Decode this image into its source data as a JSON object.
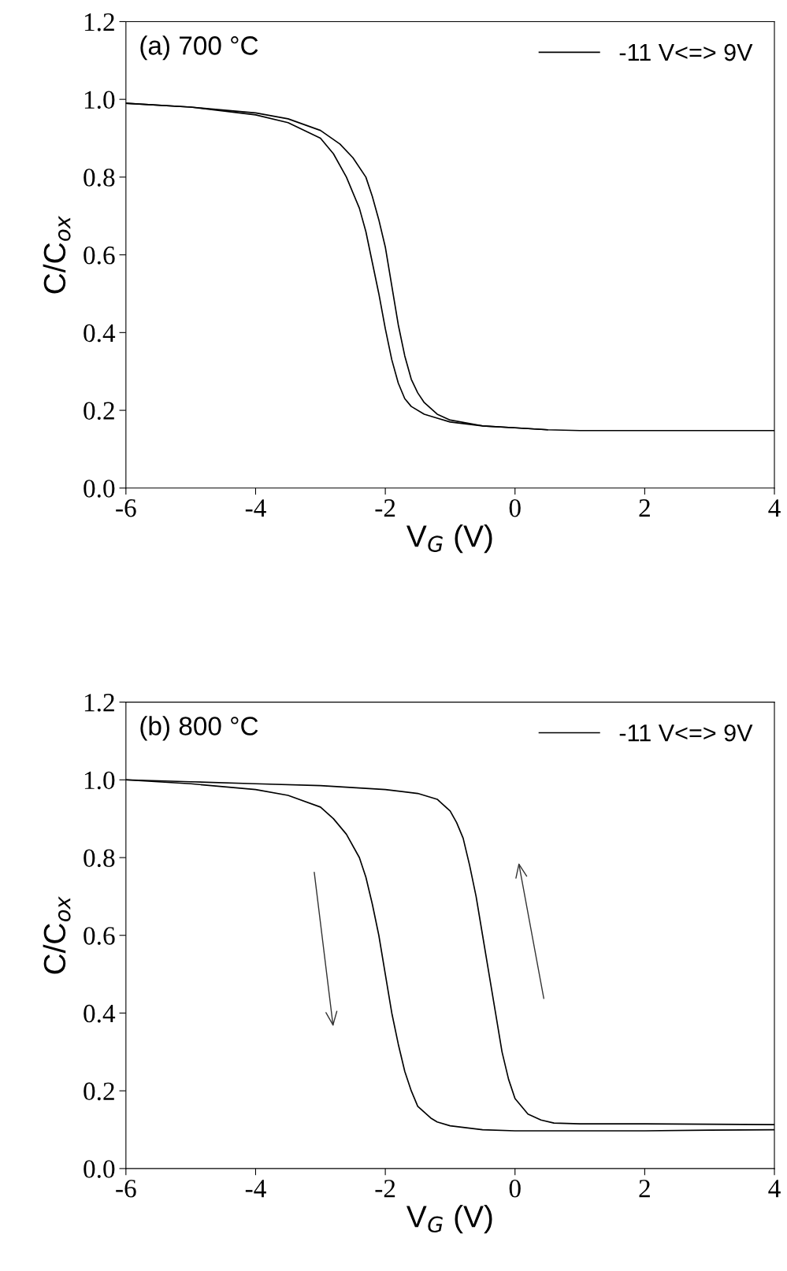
{
  "chart_data": [
    {
      "type": "line",
      "title": "(a) 700 °C",
      "xlabel": "V$_{G}$ (V)",
      "ylabel": "C/C$_{ox}$",
      "legend": "top right",
      "grid": false,
      "marker": "none",
      "line_style": "solid",
      "xlim": [
        -6,
        4
      ],
      "xticks": [
        -6,
        -4,
        -2,
        0,
        2,
        4
      ],
      "ylim": [
        0,
        1.2
      ],
      "yticks": [
        {
          "value": 0,
          "label": "0.0"
        },
        {
          "value": 0.2,
          "label": "0.2"
        },
        {
          "value": 0.4,
          "label": "0.4"
        },
        {
          "value": 0.6,
          "label": "0.6"
        },
        {
          "value": 0.8,
          "label": "0.8"
        },
        {
          "value": 1.0,
          "label": "1.0"
        },
        {
          "value": 1.2,
          "label": "1.2"
        }
      ],
      "series": [
        {
          "name": "-11 V<=> 9V",
          "color": "#000000",
          "x": [
            -6,
            -5,
            -4,
            -3.5,
            -3,
            -2.7,
            -2.5,
            -2.3,
            -2.2,
            -2.1,
            -2,
            -1.9,
            -1.8,
            -1.7,
            -1.6,
            -1.5,
            -1.4,
            -1.2,
            -1,
            -0.5,
            0,
            0.5,
            1,
            2,
            3,
            4
          ],
          "values": [
            0.99,
            0.98,
            0.965,
            0.95,
            0.92,
            0.885,
            0.85,
            0.8,
            0.75,
            0.69,
            0.62,
            0.52,
            0.42,
            0.34,
            0.28,
            0.245,
            0.22,
            0.19,
            0.175,
            0.16,
            0.155,
            0.15,
            0.148,
            0.148,
            0.148,
            0.148
          ]
        },
        {
          "color": "#000000",
          "x": [
            -6,
            -5,
            -4,
            -3.5,
            -3,
            -2.8,
            -2.6,
            -2.4,
            -2.3,
            -2.2,
            -2.1,
            -2,
            -1.9,
            -1.8,
            -1.7,
            -1.6,
            -1.4,
            -1.2,
            -1,
            -0.5,
            0,
            0.5
          ],
          "values": [
            0.99,
            0.98,
            0.96,
            0.94,
            0.9,
            0.86,
            0.8,
            0.72,
            0.66,
            0.58,
            0.5,
            0.41,
            0.33,
            0.27,
            0.23,
            0.21,
            0.19,
            0.18,
            0.17,
            0.16,
            0.155,
            0.15
          ]
        }
      ]
    },
    {
      "type": "line",
      "title": "(b) 800 °C",
      "xlabel": "V$_{G}$ (V)",
      "ylabel": "C/C$_{ox}$",
      "legend": "top right",
      "grid": false,
      "marker": "none",
      "line_style": "solid",
      "xlim": [
        -6,
        4
      ],
      "xticks": [
        -6,
        -4,
        -2,
        0,
        2,
        4
      ],
      "ylim": [
        0,
        1.2
      ],
      "yticks": [
        {
          "value": 0,
          "label": "0.0"
        },
        {
          "value": 0.2,
          "label": "0.2"
        },
        {
          "value": 0.4,
          "label": "0.4"
        },
        {
          "value": 0.6,
          "label": "0.6"
        },
        {
          "value": 0.8,
          "label": "0.8"
        },
        {
          "value": 1.0,
          "label": "1.0"
        },
        {
          "value": 1.2,
          "label": "1.2"
        }
      ],
      "series": [
        {
          "name": "-11 V<=> 9V",
          "color": "#000000",
          "x": [
            -6,
            -5,
            -4,
            -3.5,
            -3,
            -2.8,
            -2.6,
            -2.4,
            -2.3,
            -2.2,
            -2.1,
            -2,
            -1.9,
            -1.8,
            -1.7,
            -1.6,
            -1.5,
            -1.3,
            -1.2,
            -1,
            -0.5,
            0,
            1,
            2,
            3,
            4
          ],
          "values": [
            1.0,
            0.99,
            0.975,
            0.96,
            0.93,
            0.9,
            0.86,
            0.8,
            0.75,
            0.68,
            0.6,
            0.5,
            0.4,
            0.32,
            0.25,
            0.2,
            0.16,
            0.13,
            0.12,
            0.11,
            0.1,
            0.097,
            0.097,
            0.097,
            0.099,
            0.1
          ]
        },
        {
          "color": "#000000",
          "x": [
            -6,
            -5,
            -4,
            -3,
            -2,
            -1.5,
            -1.2,
            -1,
            -0.9,
            -0.8,
            -0.7,
            -0.6,
            -0.5,
            -0.4,
            -0.3,
            -0.2,
            -0.1,
            0,
            0.2,
            0.4,
            0.6,
            1,
            2,
            3,
            4
          ],
          "values": [
            1.0,
            0.995,
            0.99,
            0.985,
            0.975,
            0.965,
            0.95,
            0.92,
            0.89,
            0.85,
            0.78,
            0.7,
            0.6,
            0.5,
            0.4,
            0.3,
            0.23,
            0.18,
            0.14,
            0.125,
            0.117,
            0.115,
            0.115,
            0.114,
            0.113
          ]
        }
      ]
    }
  ]
}
